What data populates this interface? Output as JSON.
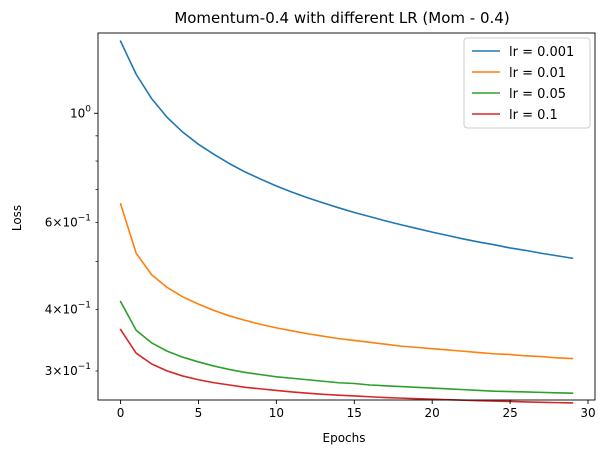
{
  "chart_data": {
    "type": "line",
    "title": "Momentum-0.4 with different LR  (Mom - 0.4)",
    "xlabel": "Epochs",
    "ylabel": "Loss",
    "yscale": "log",
    "xlim": [
      -1.45,
      30.45
    ],
    "ylim": [
      0.262,
      1.455
    ],
    "legend_position": "top-right",
    "x_ticks": [
      0,
      5,
      10,
      15,
      20,
      25,
      30
    ],
    "x_tick_labels": [
      "0",
      "5",
      "10",
      "15",
      "20",
      "25",
      "30"
    ],
    "y_major_ticks": [
      {
        "value": 1.0,
        "base": "10",
        "exp": "0"
      }
    ],
    "y_minor_ticks": [
      {
        "value": 0.3,
        "mant": "3",
        "base": "10",
        "exp": "−1"
      },
      {
        "value": 0.4,
        "mant": "4",
        "base": "10",
        "exp": "−1"
      },
      {
        "value": 0.5,
        "mant": "",
        "base": "",
        "exp": ""
      },
      {
        "value": 0.6,
        "mant": "6",
        "base": "10",
        "exp": "−1"
      },
      {
        "value": 0.7,
        "mant": "",
        "base": "",
        "exp": ""
      },
      {
        "value": 0.8,
        "mant": "",
        "base": "",
        "exp": ""
      },
      {
        "value": 0.9,
        "mant": "",
        "base": "",
        "exp": ""
      }
    ],
    "x": [
      0,
      1,
      2,
      3,
      4,
      5,
      6,
      7,
      8,
      9,
      10,
      11,
      12,
      13,
      14,
      15,
      16,
      17,
      18,
      19,
      20,
      21,
      22,
      23,
      24,
      25,
      26,
      27,
      28,
      29
    ],
    "series": [
      {
        "name": "lr = 0.001",
        "color": "#1f77b4",
        "values": [
          1.4,
          1.2,
          1.07,
          0.98,
          0.915,
          0.865,
          0.825,
          0.79,
          0.76,
          0.735,
          0.712,
          0.692,
          0.674,
          0.658,
          0.643,
          0.629,
          0.617,
          0.605,
          0.594,
          0.584,
          0.574,
          0.565,
          0.556,
          0.548,
          0.541,
          0.533,
          0.527,
          0.52,
          0.514,
          0.508
        ]
      },
      {
        "name": "lr = 0.01",
        "color": "#ff7f0e",
        "values": [
          0.655,
          0.52,
          0.47,
          0.443,
          0.424,
          0.41,
          0.398,
          0.388,
          0.38,
          0.373,
          0.367,
          0.362,
          0.357,
          0.353,
          0.349,
          0.346,
          0.343,
          0.34,
          0.337,
          0.335,
          0.333,
          0.331,
          0.329,
          0.327,
          0.325,
          0.324,
          0.322,
          0.321,
          0.319,
          0.318
        ]
      },
      {
        "name": "lr = 0.05",
        "color": "#2ca02c",
        "values": [
          0.415,
          0.363,
          0.342,
          0.329,
          0.32,
          0.313,
          0.307,
          0.302,
          0.298,
          0.295,
          0.292,
          0.29,
          0.288,
          0.286,
          0.284,
          0.283,
          0.281,
          0.28,
          0.279,
          0.278,
          0.277,
          0.276,
          0.275,
          0.274,
          0.273,
          0.2725,
          0.272,
          0.2715,
          0.271,
          0.2705
        ]
      },
      {
        "name": "lr = 0.1",
        "color": "#d62728",
        "values": [
          0.364,
          0.326,
          0.31,
          0.3,
          0.293,
          0.288,
          0.284,
          0.281,
          0.278,
          0.276,
          0.274,
          0.272,
          0.2705,
          0.269,
          0.268,
          0.267,
          0.266,
          0.265,
          0.2643,
          0.2636,
          0.263,
          0.2624,
          0.2618,
          0.2612,
          0.2607,
          0.2602,
          0.2597,
          0.2592,
          0.2588,
          0.2584
        ]
      }
    ]
  }
}
